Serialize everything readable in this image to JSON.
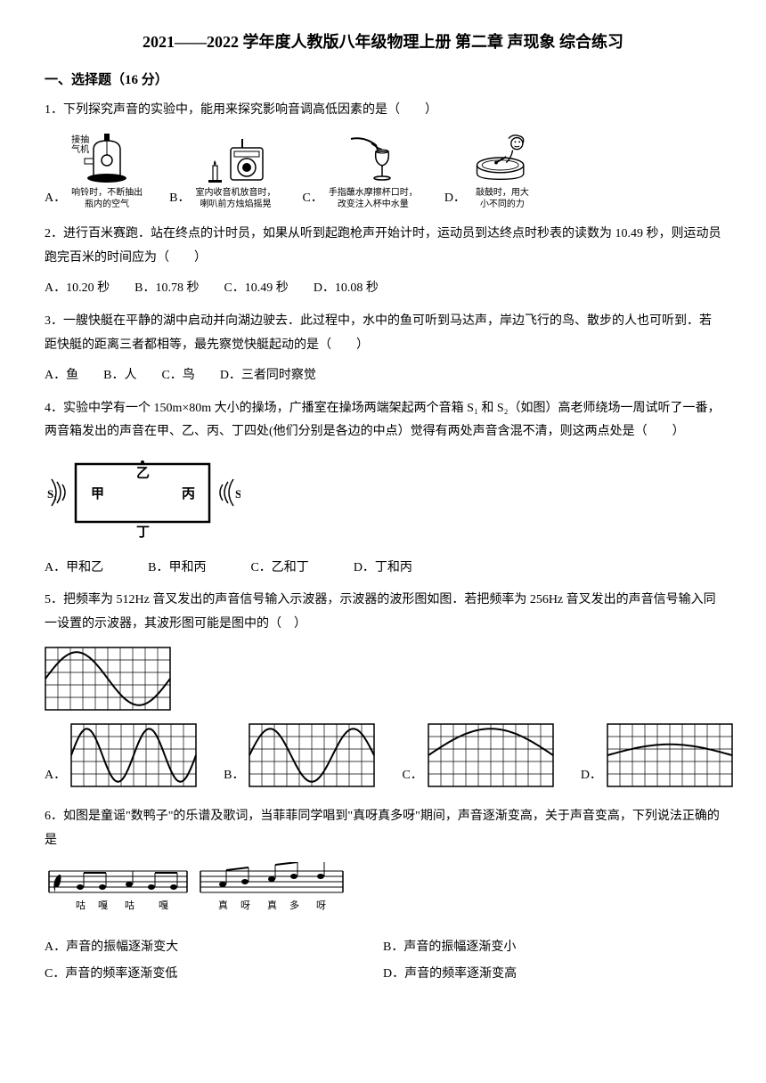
{
  "title": "2021——2022 学年度人教版八年级物理上册  第二章  声现象  综合练习",
  "section1": {
    "header": "一、选择题（16 分）"
  },
  "q1": {
    "text": "1．下列探究声音的实验中，能用来探究影响音调高低因素的是（　　）",
    "opts": {
      "A": {
        "label": "A．",
        "cap1": "接抽",
        "cap2": "气机",
        "cap3": "响铃时，不断抽出",
        "cap4": "瓶内的空气"
      },
      "B": {
        "label": "B．",
        "cap1": "室内收音机放音时，",
        "cap2": "喇叭前方烛焰摇晃"
      },
      "C": {
        "label": "C．",
        "cap1": "手指蘸水摩擦杯口时，",
        "cap2": "改变注入杯中水量"
      },
      "D": {
        "label": "D．",
        "cap1": "敲鼓时，用大",
        "cap2": "小不同的力"
      }
    }
  },
  "q2": {
    "text": "2．进行百米赛跑．站在终点的计时员，如果从听到起跑枪声开始计时，运动员到达终点时秒表的读数为 10.49 秒，则运动员跑完百米的时间应为（　　）",
    "A": "A．10.20 秒",
    "B": "B．10.78 秒",
    "C": "C．10.49 秒",
    "D": "D．10.08 秒"
  },
  "q3": {
    "text": "3．一艘快艇在平静的湖中启动并向湖边驶去．此过程中，水中的鱼可听到马达声，岸边飞行的鸟、散步的人也可听到．若距快艇的距离三者都相等，最先察觉快艇起动的是（　　）",
    "A": "A．鱼",
    "B": "B．人",
    "C": "C．鸟",
    "D": "D．三者同时察觉"
  },
  "q4": {
    "text": "4．实验中学有一个 150m×80m 大小的操场，广播室在操场两端架起两个音箱 S₁ 和 S₂（如图）高老师绕场一周试听了一番，两音箱发出的声音在甲、乙、丙、丁四处(他们分别是各边的中点）觉得有两处声音含混不清，则这两点处是（　　）",
    "labels": {
      "s1": "S₁",
      "s2": "S₂",
      "jia": "甲",
      "yi": "乙",
      "bing": "丙",
      "ding": "丁"
    },
    "A": "A．甲和乙",
    "B": "B．甲和丙",
    "C": "C．乙和丁",
    "D": "D．丁和丙"
  },
  "q5": {
    "text": "5．把频率为 512Hz 音叉发出的声音信号输入示波器，示波器的波形图如图．若把频率为 256Hz 音叉发出的声音信号输入同一设置的示波器，其波形图可能是图中的（　）",
    "A": "A．",
    "B": "B．",
    "C": "C．",
    "D": "D．",
    "grid": {
      "cols": 10,
      "rows": 5,
      "cell": 14,
      "stroke": "#000000",
      "bg": "#ffffff"
    },
    "ref_wave": {
      "cycles": 1,
      "amp": 0.85
    },
    "waves": {
      "A": {
        "cycles": 2,
        "amp": 0.85
      },
      "B": {
        "cycles": 1.5,
        "amp": 0.85
      },
      "C": {
        "cycles": 0.5,
        "amp": 0.85
      },
      "D": {
        "cycles": 0.5,
        "amp": 0.35
      }
    }
  },
  "q6": {
    "text": "6．如图是童谣\"数鸭子\"的乐谱及歌词，当菲菲同学唱到\"真呀真多呀\"期间，声音逐渐变高，关于声音变高，下列说法正确的是",
    "lyrics": [
      "咕",
      "嘎",
      "咕",
      "嘎",
      "真",
      "呀",
      "真",
      "多",
      "呀"
    ],
    "A": "A．声音的振幅逐渐变大",
    "B": "B．声音的振幅逐渐变小",
    "C": "C．声音的频率逐渐变低",
    "D": "D．声音的频率逐渐变高"
  }
}
